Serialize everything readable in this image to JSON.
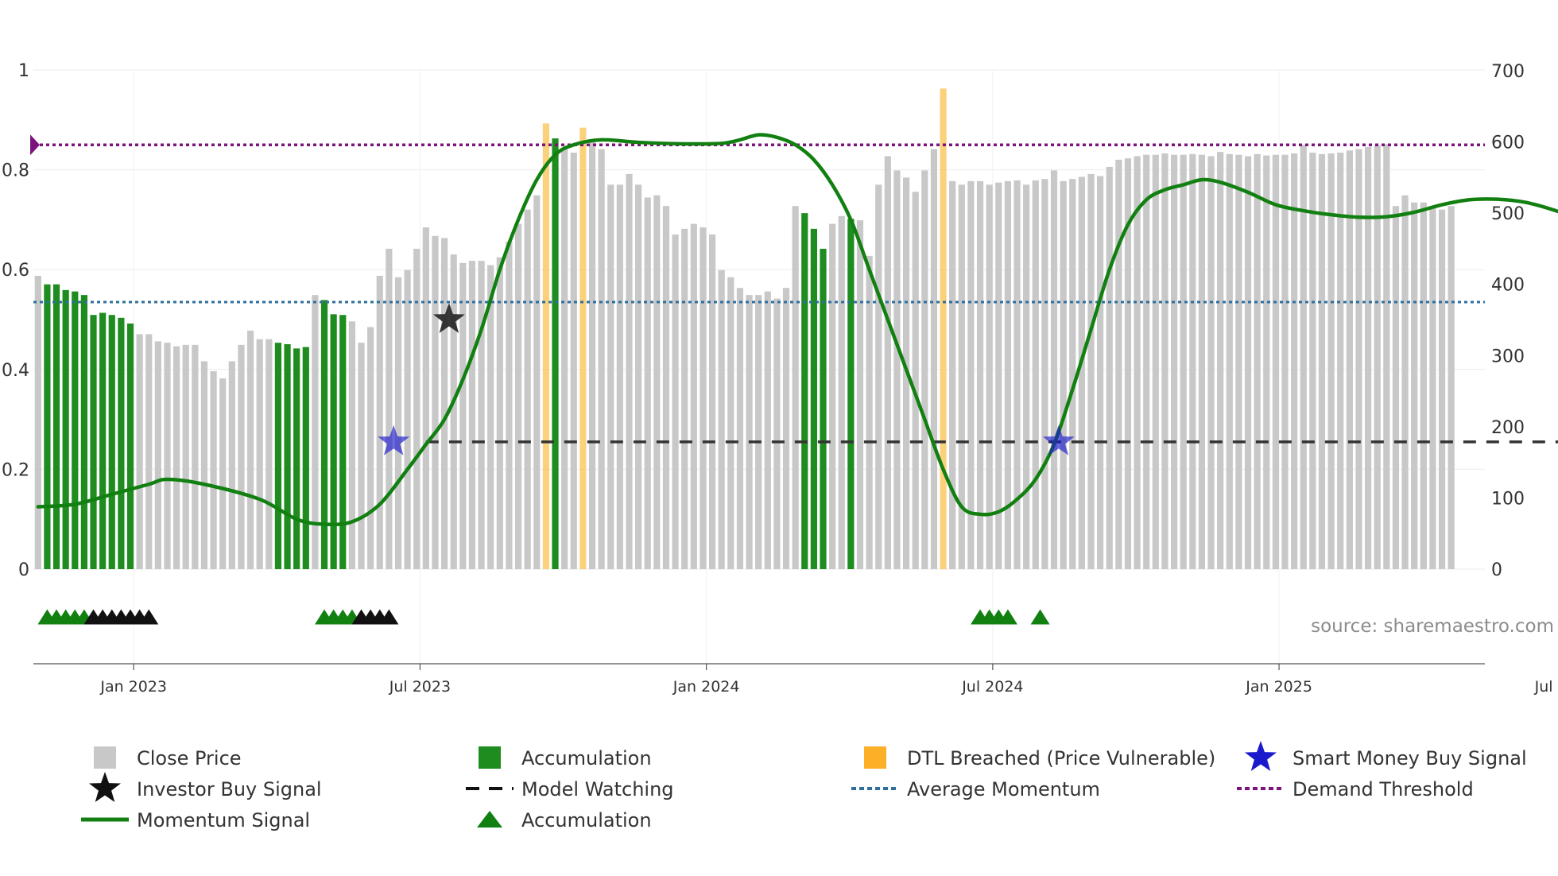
{
  "chart_data": {
    "type": "bar",
    "title": "",
    "source_text": "source: sharemaestro.com",
    "left_axis": {
      "range": [
        0,
        1
      ],
      "ticks": [
        0,
        0.2,
        0.4,
        0.6,
        0.8,
        1
      ],
      "tick_labels": [
        "0",
        "0.2",
        "0.4",
        "0.6",
        "0.8",
        "1"
      ]
    },
    "right_axis": {
      "range": [
        0,
        700
      ],
      "ticks": [
        0,
        100,
        200,
        300,
        400,
        500,
        600,
        700
      ],
      "tick_labels": [
        "0",
        "100",
        "200",
        "300",
        "400",
        "500",
        "600",
        "700"
      ]
    },
    "x_axis": {
      "range": [
        0,
        187
      ],
      "ticks": [
        10,
        41,
        72,
        103,
        134,
        165
      ],
      "tick_labels": [
        "Jan 2023",
        "Jul 2023",
        "Jan 2024",
        "Jul 2024",
        "Jan 2025",
        "Jul 2025"
      ]
    },
    "demand_threshold": 0.85,
    "average_momentum": 0.535,
    "model_watching_level": 0.255,
    "colors": {
      "close": "#c8c8c8",
      "accumulation": "#1e8c1e",
      "dtl": "#fbc65a",
      "momentum": "#118011",
      "average": "#2e6fa0",
      "demand": "#7b147b",
      "watching": "#333333",
      "investor_star": "#222222",
      "smart_star": "#1a1acc",
      "triangle_green": "#118011",
      "triangle_black": "#111111"
    },
    "series": [
      {
        "name": "Close Price",
        "kind": "bar",
        "axis": "right",
        "values": [
          412,
          400,
          400,
          392,
          390,
          385,
          357,
          360,
          357,
          353,
          345,
          330,
          330,
          320,
          318,
          313,
          315,
          315,
          292,
          278,
          268,
          292,
          315,
          335,
          323,
          323,
          318,
          316,
          310,
          312,
          385,
          378,
          358,
          357,
          348,
          318,
          340,
          412,
          450,
          410,
          420,
          450,
          480,
          468,
          465,
          442,
          430,
          433,
          433,
          427,
          438,
          460,
          485,
          505,
          525,
          626,
          605,
          590,
          585,
          620,
          600,
          590,
          540,
          540,
          555,
          540,
          522,
          525,
          510,
          470,
          478,
          485,
          480,
          470,
          420,
          410,
          395,
          385,
          385,
          390,
          380,
          395,
          510,
          500,
          478,
          450,
          485,
          496,
          492,
          490,
          440,
          540,
          580,
          560,
          550,
          530,
          560,
          590,
          675,
          545,
          540,
          545,
          545,
          540,
          543,
          545,
          546,
          540,
          546,
          548,
          560,
          545,
          548,
          551,
          555,
          552,
          565,
          575,
          577,
          580,
          582,
          582,
          584,
          582,
          582,
          583,
          582,
          580,
          586,
          583,
          582,
          580,
          583,
          581,
          582,
          582,
          584,
          596,
          585,
          583,
          584,
          585,
          588,
          590,
          593,
          595,
          597,
          510,
          525,
          515,
          515,
          510,
          505,
          510
        ],
        "color_categories": [
          "close",
          "accumulation",
          "accumulation",
          "accumulation",
          "accumulation",
          "accumulation",
          "accumulation",
          "accumulation",
          "accumulation",
          "accumulation",
          "accumulation",
          "close",
          "close",
          "close",
          "close",
          "close",
          "close",
          "close",
          "close",
          "close",
          "close",
          "close",
          "close",
          "close",
          "close",
          "close",
          "accumulation",
          "accumulation",
          "accumulation",
          "accumulation",
          "close",
          "accumulation",
          "accumulation",
          "accumulation",
          "close",
          "close",
          "close",
          "close",
          "close",
          "close",
          "close",
          "close",
          "close",
          "close",
          "close",
          "close",
          "close",
          "close",
          "close",
          "close",
          "close",
          "close",
          "close",
          "close",
          "close",
          "dtl",
          "accumulation",
          "close",
          "close",
          "dtl",
          "close",
          "close",
          "close",
          "close",
          "close",
          "close",
          "close",
          "close",
          "close",
          "close",
          "close",
          "close",
          "close",
          "close",
          "close",
          "close",
          "close",
          "close",
          "close",
          "close",
          "close",
          "close",
          "close",
          "accumulation",
          "accumulation",
          "accumulation",
          "close",
          "close",
          "accumulation",
          "close",
          "close",
          "close",
          "close",
          "close",
          "close",
          "close",
          "close",
          "close",
          "dtl",
          "close",
          "close",
          "close",
          "close",
          "close",
          "close",
          "close",
          "close",
          "close",
          "close",
          "close",
          "close",
          "close",
          "close",
          "close",
          "close",
          "close",
          "close",
          "close",
          "close",
          "close",
          "close",
          "close",
          "close",
          "close",
          "close",
          "close",
          "close",
          "close",
          "close",
          "close",
          "close",
          "close",
          "close",
          "close",
          "close",
          "close",
          "close",
          "close",
          "close",
          "close",
          "close",
          "close",
          "close",
          "close",
          "close",
          "close",
          "close",
          "close",
          "close",
          "close",
          "close",
          "close",
          "close",
          "close",
          "close",
          "close",
          "close",
          "close",
          "close",
          "close",
          "close",
          "close",
          "close",
          "close",
          "close",
          "close",
          "close",
          "close",
          "close",
          "close"
        ]
      },
      {
        "name": "Momentum Signal",
        "kind": "line",
        "axis": "left",
        "points": [
          [
            0,
            0.125
          ],
          [
            4,
            0.13
          ],
          [
            8,
            0.15
          ],
          [
            12,
            0.17
          ],
          [
            14,
            0.18
          ],
          [
            18,
            0.17
          ],
          [
            24,
            0.14
          ],
          [
            28,
            0.1
          ],
          [
            31,
            0.09
          ],
          [
            34,
            0.095
          ],
          [
            37,
            0.13
          ],
          [
            40,
            0.2
          ],
          [
            42,
            0.25
          ],
          [
            44,
            0.3
          ],
          [
            46,
            0.38
          ],
          [
            48,
            0.48
          ],
          [
            50,
            0.6
          ],
          [
            52,
            0.7
          ],
          [
            54,
            0.78
          ],
          [
            56,
            0.83
          ],
          [
            58,
            0.85
          ],
          [
            61,
            0.86
          ],
          [
            65,
            0.855
          ],
          [
            70,
            0.852
          ],
          [
            74,
            0.853
          ],
          [
            76,
            0.86
          ],
          [
            78,
            0.87
          ],
          [
            80,
            0.865
          ],
          [
            82,
            0.85
          ],
          [
            84,
            0.82
          ],
          [
            86,
            0.77
          ],
          [
            88,
            0.7
          ],
          [
            90,
            0.6
          ],
          [
            92,
            0.5
          ],
          [
            94,
            0.4
          ],
          [
            96,
            0.3
          ],
          [
            98,
            0.2
          ],
          [
            100,
            0.125
          ],
          [
            102,
            0.11
          ],
          [
            104,
            0.115
          ],
          [
            106,
            0.14
          ],
          [
            108,
            0.18
          ],
          [
            110,
            0.25
          ],
          [
            112,
            0.36
          ],
          [
            114,
            0.48
          ],
          [
            116,
            0.6
          ],
          [
            118,
            0.69
          ],
          [
            120,
            0.74
          ],
          [
            122,
            0.76
          ],
          [
            124,
            0.77
          ],
          [
            126,
            0.78
          ],
          [
            128,
            0.775
          ],
          [
            131,
            0.755
          ],
          [
            134,
            0.73
          ],
          [
            137,
            0.718
          ],
          [
            140,
            0.71
          ],
          [
            143,
            0.705
          ],
          [
            146,
            0.706
          ],
          [
            149,
            0.715
          ],
          [
            152,
            0.73
          ],
          [
            155,
            0.74
          ],
          [
            158,
            0.741
          ],
          [
            161,
            0.735
          ],
          [
            164,
            0.72
          ],
          [
            167,
            0.7
          ],
          [
            170,
            0.675
          ],
          [
            173,
            0.665
          ],
          [
            175,
            0.68
          ],
          [
            176,
            0.65
          ],
          [
            177,
            0.645
          ],
          [
            178,
            0.64
          ],
          [
            180,
            0.61
          ],
          [
            182,
            0.59
          ],
          [
            184,
            0.57
          ],
          [
            185,
            0.59
          ],
          [
            186,
            0.55
          ],
          [
            187,
            0.47
          ],
          [
            189,
            0.38
          ],
          [
            191,
            0.34
          ]
        ]
      },
      {
        "name": "Demand Threshold",
        "kind": "hline",
        "axis": "left",
        "value": 0.85
      },
      {
        "name": "Average Momentum",
        "kind": "hline",
        "axis": "left",
        "value": 0.535
      },
      {
        "name": "Model Watching",
        "kind": "segment",
        "axis": "left",
        "value": 0.255,
        "x_start": 42,
        "x_end": 191
      },
      {
        "name": "Investor Buy Signal",
        "kind": "marker",
        "axis": "left",
        "points": [
          [
            44.5,
            0.5
          ]
        ]
      },
      {
        "name": "Smart Money Buy Signal",
        "kind": "marker",
        "axis": "left",
        "points": [
          [
            38.5,
            0.255
          ],
          [
            110.5,
            0.255
          ]
        ]
      },
      {
        "name": "Accumulation",
        "kind": "triangle-row",
        "green_x": [
          1,
          2,
          3,
          4,
          5,
          31,
          32,
          33,
          34,
          102,
          103,
          104,
          105,
          108.5
        ],
        "black_x": [
          6,
          7,
          8,
          9,
          10,
          11,
          12,
          35,
          36,
          37,
          38
        ]
      }
    ],
    "legend": [
      {
        "label": "Close Price",
        "symbol": "square-gray"
      },
      {
        "label": "Accumulation",
        "symbol": "square-green"
      },
      {
        "label": "DTL Breached (Price Vulnerable)",
        "symbol": "square-orange"
      },
      {
        "label": "Smart Money Buy Signal",
        "symbol": "star-blue"
      },
      {
        "label": "Investor Buy Signal",
        "symbol": "star-black"
      },
      {
        "label": "Model Watching",
        "symbol": "dash-black"
      },
      {
        "label": "Average Momentum",
        "symbol": "dot-blue"
      },
      {
        "label": "Demand Threshold",
        "symbol": "dot-purple"
      },
      {
        "label": "Momentum Signal",
        "symbol": "line-green"
      },
      {
        "label": "Accumulation",
        "symbol": "triangle-green"
      }
    ]
  }
}
